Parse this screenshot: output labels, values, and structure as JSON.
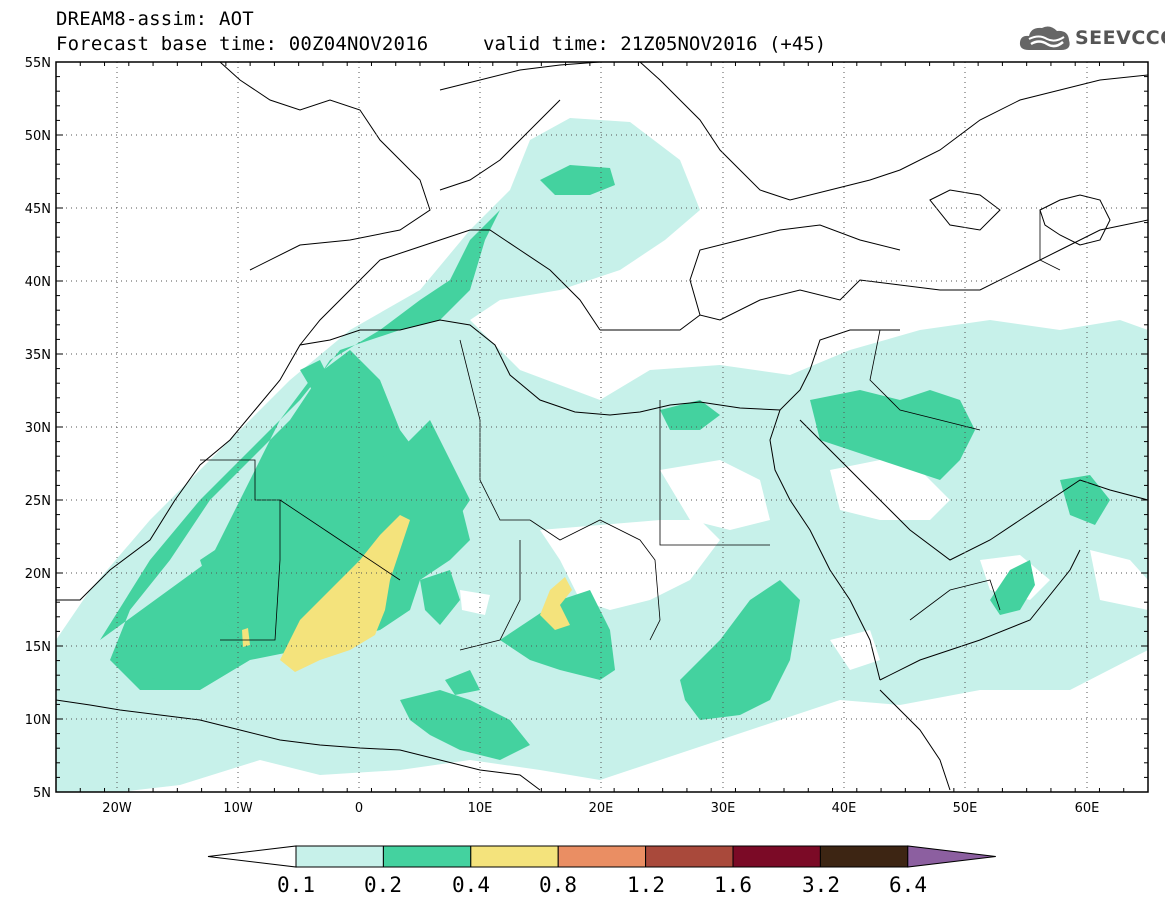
{
  "header": {
    "title": "DREAM8-assim: AOT",
    "base_time": "Forecast base time: 00Z04NOV2016",
    "valid_time": "valid time: 21Z05NOV2016 (+45)"
  },
  "logo": {
    "text": "SEEVCCC",
    "icon": "cloud-icon"
  },
  "map": {
    "lon_range": [
      -25,
      65
    ],
    "lat_range": [
      5,
      55
    ],
    "lat_labels": [
      "55N",
      "50N",
      "45N",
      "40N",
      "35N",
      "30N",
      "25N",
      "20N",
      "15N",
      "10N",
      "5N"
    ],
    "lon_labels": [
      "20W",
      "10W",
      "0",
      "10E",
      "20E",
      "30E",
      "40E",
      "50E",
      "60E"
    ],
    "grid": "dotted"
  },
  "colorbar": {
    "labels": [
      "0.1",
      "0.2",
      "0.4",
      "0.8",
      "1.2",
      "1.6",
      "3.2",
      "6.4"
    ],
    "colors": [
      "#ffffff",
      "#c7f1ea",
      "#44d29f",
      "#f4e37c",
      "#ea8e63",
      "#a9493b",
      "#7b0a26",
      "#3d2513",
      "#8c5fa0"
    ]
  }
}
